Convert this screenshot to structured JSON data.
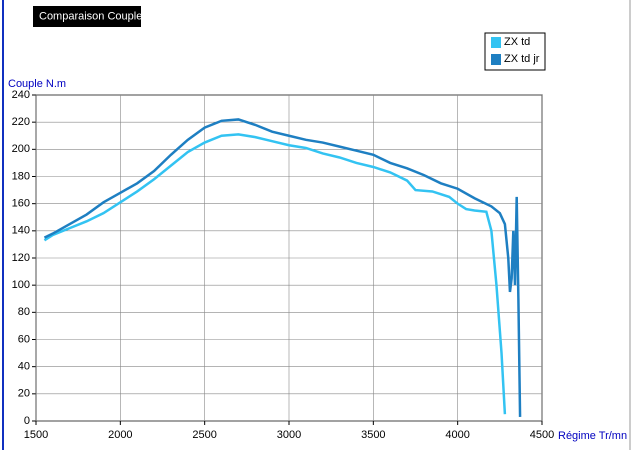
{
  "chart_data": {
    "type": "line",
    "title": "Comparaison Couple",
    "y_label": "Couple N.m",
    "x_label": "Régime Tr/mn",
    "xlim": [
      1500,
      4500
    ],
    "xticks": [
      1500,
      2000,
      2500,
      3000,
      3500,
      4000,
      4500
    ],
    "ylim": [
      0,
      240
    ],
    "yticks": [
      0,
      20,
      40,
      60,
      80,
      100,
      120,
      140,
      160,
      180,
      200,
      220,
      240
    ],
    "grid": true,
    "legend": "top-right",
    "series": [
      {
        "name": "ZX td",
        "color": "#33c3f2",
        "x": [
          1550,
          1600,
          1700,
          1800,
          1900,
          2000,
          2100,
          2200,
          2300,
          2400,
          2500,
          2600,
          2700,
          2800,
          2900,
          3000,
          3100,
          3200,
          3300,
          3400,
          3500,
          3600,
          3700,
          3750,
          3850,
          3950,
          4000,
          4050,
          4100,
          4170,
          4200,
          4230,
          4260,
          4280
        ],
        "values": [
          133,
          137,
          142,
          147,
          153,
          161,
          169,
          178,
          188,
          198,
          205,
          210,
          211,
          209,
          206,
          203,
          201,
          197,
          194,
          190,
          187,
          183,
          177,
          170,
          169,
          165,
          160,
          156,
          155,
          154,
          140,
          100,
          50,
          5
        ]
      },
      {
        "name": "ZX td jr",
        "color": "#1e7fc2",
        "x": [
          1550,
          1600,
          1700,
          1800,
          1900,
          2000,
          2100,
          2200,
          2300,
          2400,
          2500,
          2600,
          2700,
          2800,
          2900,
          3000,
          3100,
          3200,
          3300,
          3400,
          3500,
          3600,
          3700,
          3800,
          3900,
          4000,
          4100,
          4200,
          4250,
          4280,
          4300,
          4310,
          4320,
          4330,
          4340,
          4350,
          4360,
          4370
        ],
        "values": [
          135,
          138,
          145,
          152,
          161,
          168,
          175,
          184,
          196,
          207,
          216,
          221,
          222,
          218,
          213,
          210,
          207,
          205,
          202,
          199,
          196,
          190,
          186,
          181,
          175,
          171,
          164,
          158,
          153,
          145,
          120,
          95,
          105,
          140,
          100,
          165,
          90,
          3
        ]
      }
    ]
  }
}
